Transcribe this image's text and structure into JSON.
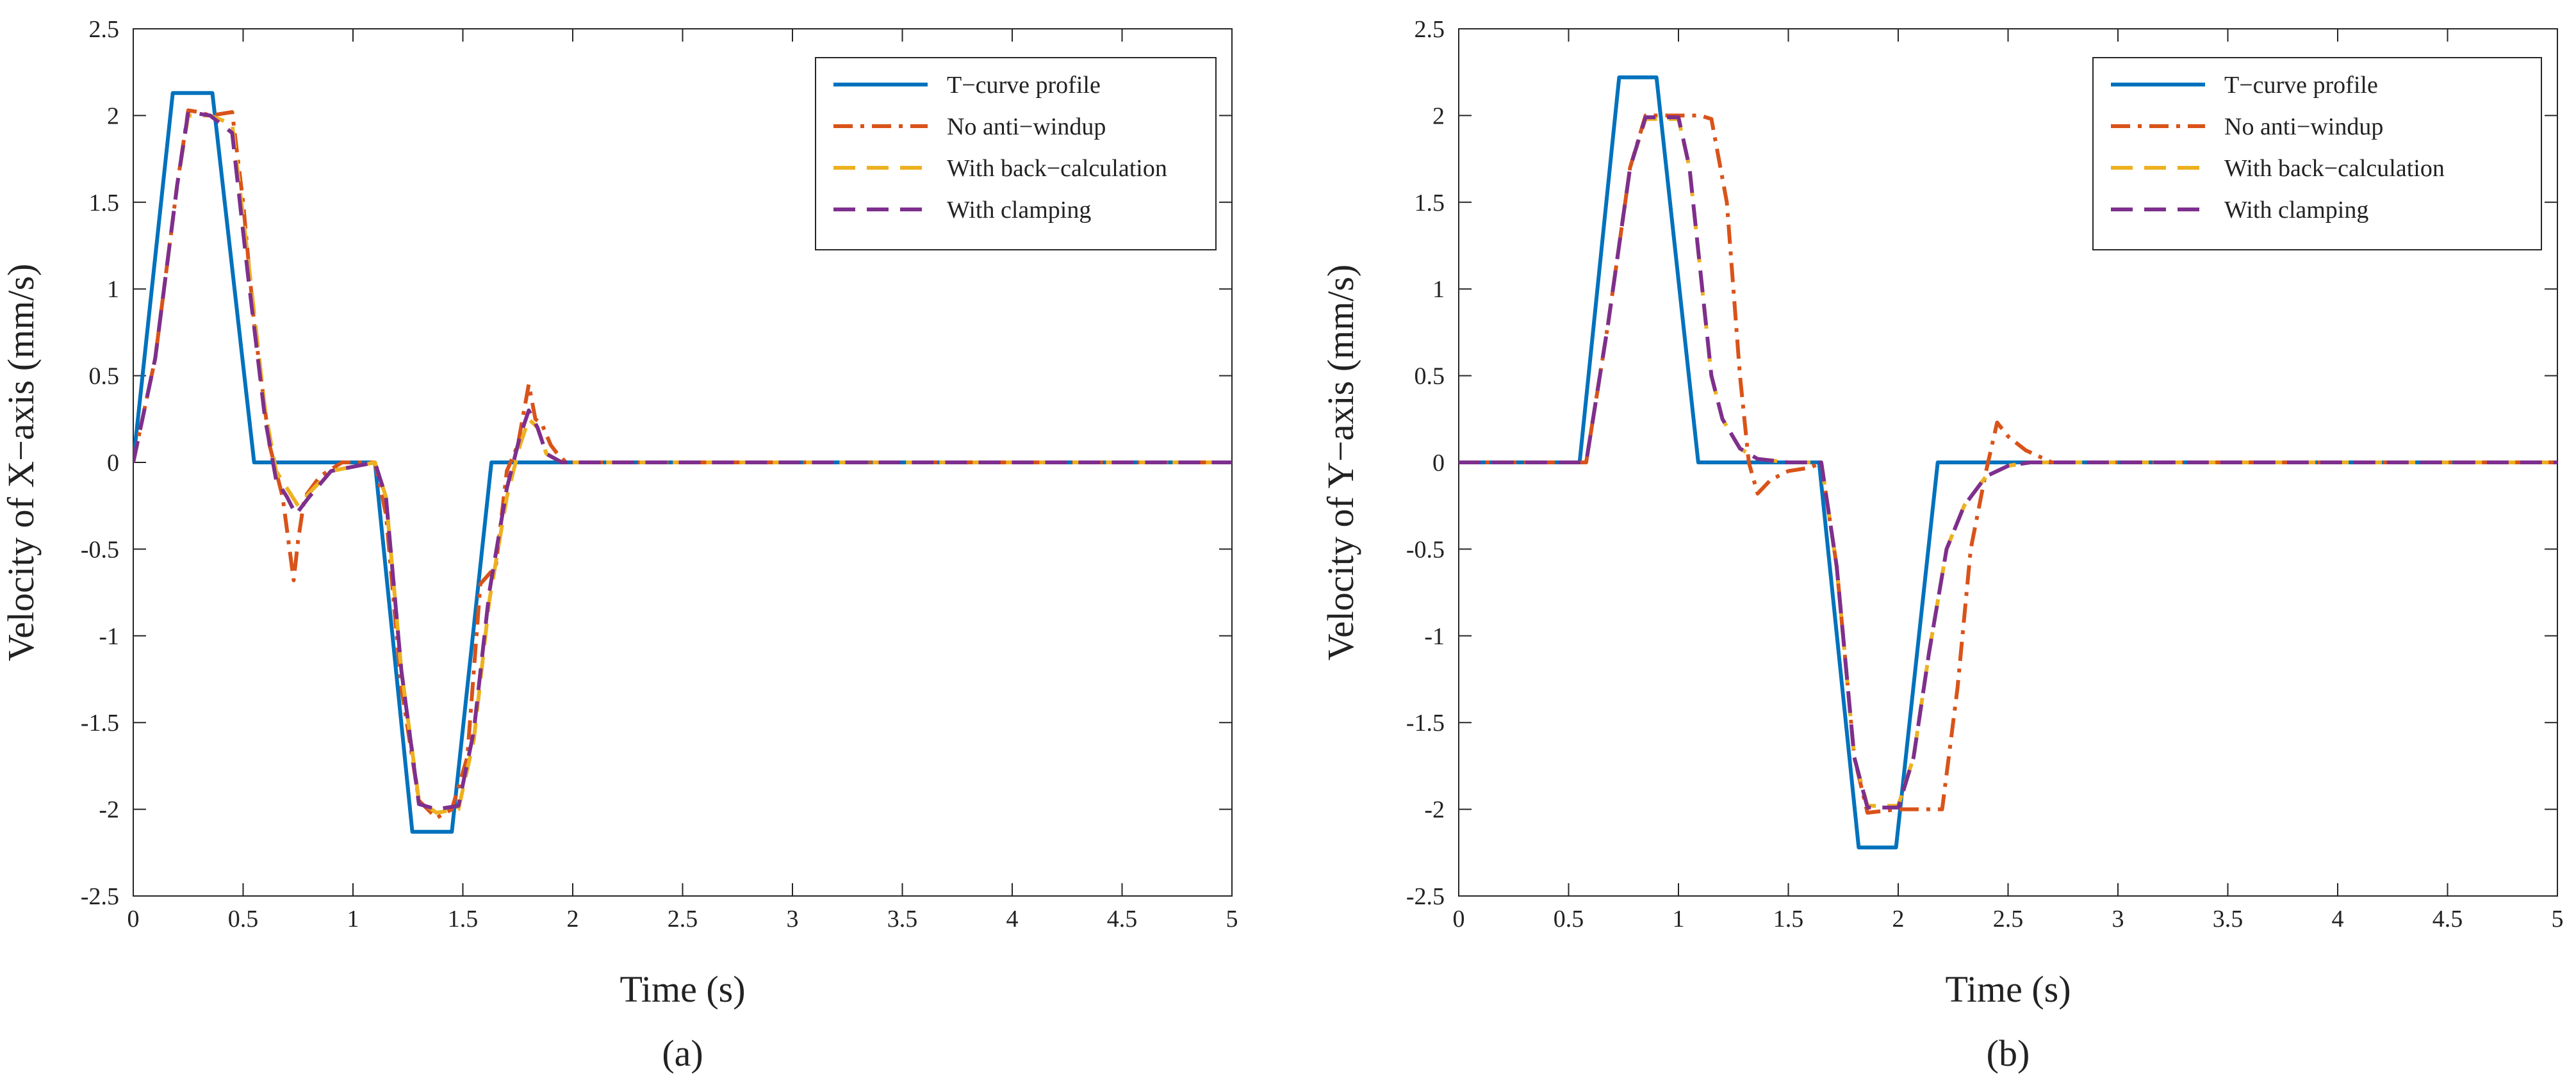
{
  "chart_data": [
    {
      "type": "line",
      "panel_label": "(a)",
      "xlabel": "Time (s)",
      "ylabel": "Velocity of X−axis (mm/s)",
      "xlim": [
        0,
        5
      ],
      "ylim": [
        -2.5,
        2.5
      ],
      "xticks": [
        0,
        0.5,
        1,
        1.5,
        2,
        2.5,
        3,
        3.5,
        4,
        4.5,
        5
      ],
      "xtick_labels": [
        "0",
        "0.5",
        "1",
        "1.5",
        "2",
        "2.5",
        "3",
        "3.5",
        "4",
        "4.5",
        "5"
      ],
      "yticks": [
        -2.5,
        -2,
        -1.5,
        -1,
        -0.5,
        0,
        0.5,
        1,
        1.5,
        2,
        2.5
      ],
      "ytick_labels": [
        "-2.5",
        "-2",
        "-1.5",
        "-1",
        "-0.5",
        "0",
        "0.5",
        "1",
        "1.5",
        "2",
        "2.5"
      ],
      "grid": false,
      "legend_position": "top-right",
      "series": [
        {
          "name": "T−curve profile",
          "color": "#0072BD",
          "style": "solid",
          "x": [
            0,
            0.18,
            0.36,
            0.55,
            1.1,
            1.27,
            1.45,
            1.63,
            5
          ],
          "y": [
            0,
            2.13,
            2.13,
            0,
            0,
            -2.13,
            -2.13,
            0,
            0
          ]
        },
        {
          "name": "No anti−windup",
          "color": "#D95319",
          "style": "dashdot",
          "x": [
            0,
            0.1,
            0.2,
            0.25,
            0.3,
            0.35,
            0.45,
            0.5,
            0.55,
            0.62,
            0.68,
            0.73,
            0.75,
            0.78,
            0.85,
            0.95,
            1.1,
            1.15,
            1.22,
            1.3,
            1.38,
            1.45,
            1.52,
            1.58,
            1.65,
            1.7,
            1.75,
            1.8,
            1.83,
            1.86,
            1.9,
            1.93,
            1.97,
            2.05,
            2.5,
            3,
            3.5,
            4,
            4.5,
            5
          ],
          "y": [
            0,
            0.6,
            1.6,
            2.03,
            2.02,
            2.0,
            2.02,
            1.5,
            0.8,
            0.1,
            -0.2,
            -0.68,
            -0.45,
            -0.2,
            -0.08,
            0,
            0,
            -0.3,
            -1.3,
            -1.95,
            -2.05,
            -2.0,
            -1.7,
            -0.7,
            -0.6,
            -0.05,
            0.1,
            0.45,
            0.25,
            0.22,
            0.1,
            0.05,
            0,
            0,
            0,
            0,
            0,
            0,
            0,
            0
          ]
        },
        {
          "name": "With back−calculation",
          "color": "#EDB120",
          "style": "dashed",
          "x": [
            0,
            0.1,
            0.2,
            0.25,
            0.35,
            0.45,
            0.52,
            0.6,
            0.65,
            0.7,
            0.75,
            0.82,
            0.9,
            1.1,
            1.15,
            1.22,
            1.3,
            1.38,
            1.48,
            1.55,
            1.62,
            1.7,
            1.76,
            1.8,
            1.84,
            1.88,
            1.95,
            2.5,
            5
          ],
          "y": [
            0,
            0.6,
            1.6,
            2.0,
            2.0,
            1.95,
            1.2,
            0.3,
            -0.05,
            -0.15,
            -0.25,
            -0.15,
            -0.05,
            0,
            -0.2,
            -1.2,
            -1.95,
            -2.02,
            -2.0,
            -1.6,
            -0.8,
            -0.2,
            0.1,
            0.25,
            0.2,
            0.05,
            0,
            0,
            0
          ]
        },
        {
          "name": "With clamping",
          "color": "#7E2F8E",
          "style": "dashed",
          "x": [
            0,
            0.1,
            0.2,
            0.25,
            0.35,
            0.45,
            0.52,
            0.6,
            0.65,
            0.7,
            0.74,
            0.8,
            0.9,
            1.1,
            1.15,
            1.22,
            1.3,
            1.38,
            1.48,
            1.55,
            1.62,
            1.7,
            1.76,
            1.8,
            1.84,
            1.88,
            1.95,
            2.5,
            5
          ],
          "y": [
            0,
            0.6,
            1.6,
            2.02,
            2.0,
            1.9,
            1.1,
            0.25,
            -0.1,
            -0.2,
            -0.3,
            -0.2,
            -0.05,
            0,
            -0.2,
            -1.2,
            -1.97,
            -2.0,
            -1.98,
            -1.55,
            -0.75,
            -0.15,
            0.15,
            0.3,
            0.2,
            0.05,
            0,
            0,
            0
          ]
        }
      ]
    },
    {
      "type": "line",
      "panel_label": "(b)",
      "xlabel": "Time (s)",
      "ylabel": "Velocity of Y−axis (mm/s)",
      "xlim": [
        0,
        5
      ],
      "ylim": [
        -2.5,
        2.5
      ],
      "xticks": [
        0,
        0.5,
        1,
        1.5,
        2,
        2.5,
        3,
        3.5,
        4,
        4.5,
        5
      ],
      "xtick_labels": [
        "0",
        "0.5",
        "1",
        "1.5",
        "2",
        "2.5",
        "3",
        "3.5",
        "4",
        "4.5",
        "5"
      ],
      "yticks": [
        -2.5,
        -2,
        -1.5,
        -1,
        -0.5,
        0,
        0.5,
        1,
        1.5,
        2,
        2.5
      ],
      "ytick_labels": [
        "-2.5",
        "-2",
        "-1.5",
        "-1",
        "-0.5",
        "0",
        "0.5",
        "1",
        "1.5",
        "2",
        "2.5"
      ],
      "grid": false,
      "legend_position": "top-right",
      "series": [
        {
          "name": "T−curve profile",
          "color": "#0072BD",
          "style": "solid",
          "x": [
            0,
            0.55,
            0.73,
            0.9,
            1.09,
            1.64,
            1.82,
            1.99,
            2.18,
            5
          ],
          "y": [
            0,
            0,
            2.22,
            2.22,
            0,
            0,
            -2.22,
            -2.22,
            0,
            0
          ]
        },
        {
          "name": "No anti−windup",
          "color": "#D95319",
          "style": "dashdot",
          "x": [
            0,
            0.58,
            0.68,
            0.78,
            0.85,
            1.0,
            1.1,
            1.15,
            1.22,
            1.28,
            1.32,
            1.36,
            1.42,
            1.5,
            1.6,
            1.65,
            1.72,
            1.8,
            1.86,
            2.0,
            2.1,
            2.2,
            2.27,
            2.33,
            2.4,
            2.45,
            2.5,
            2.58,
            2.7,
            3,
            5
          ],
          "y": [
            0,
            0,
            0.8,
            1.7,
            2.0,
            2.0,
            2.0,
            1.98,
            1.5,
            0.5,
            0.0,
            -0.18,
            -0.1,
            -0.05,
            -0.03,
            0,
            -0.6,
            -1.7,
            -2.02,
            -2.0,
            -2.0,
            -2.0,
            -1.3,
            -0.5,
            -0.05,
            0.23,
            0.15,
            0.07,
            0,
            0,
            0
          ]
        },
        {
          "name": "With back−calculation",
          "color": "#EDB120",
          "style": "dashed",
          "x": [
            0,
            0.58,
            0.68,
            0.78,
            0.85,
            1.0,
            1.05,
            1.1,
            1.15,
            1.2,
            1.28,
            1.36,
            1.5,
            1.65,
            1.72,
            1.8,
            1.86,
            2.0,
            2.07,
            2.14,
            2.22,
            2.3,
            2.4,
            2.5,
            2.6,
            2.7,
            5
          ],
          "y": [
            0,
            0,
            0.8,
            1.7,
            1.98,
            1.98,
            1.7,
            1.1,
            0.5,
            0.25,
            0.08,
            0.02,
            0,
            0,
            -0.6,
            -1.7,
            -1.98,
            -1.98,
            -1.7,
            -1.1,
            -0.5,
            -0.25,
            -0.08,
            -0.02,
            0,
            0,
            0
          ]
        },
        {
          "name": "With clamping",
          "color": "#7E2F8E",
          "style": "dashed",
          "x": [
            0,
            0.58,
            0.68,
            0.78,
            0.85,
            1.0,
            1.05,
            1.1,
            1.15,
            1.2,
            1.28,
            1.36,
            1.5,
            1.65,
            1.72,
            1.8,
            1.86,
            2.0,
            2.07,
            2.14,
            2.22,
            2.3,
            2.4,
            2.5,
            2.6,
            2.7,
            5
          ],
          "y": [
            0,
            0,
            0.8,
            1.7,
            1.99,
            1.99,
            1.7,
            1.1,
            0.5,
            0.25,
            0.08,
            0.02,
            0,
            0,
            -0.6,
            -1.7,
            -1.99,
            -1.99,
            -1.7,
            -1.1,
            -0.5,
            -0.25,
            -0.08,
            -0.02,
            0,
            0,
            0
          ]
        }
      ]
    }
  ]
}
